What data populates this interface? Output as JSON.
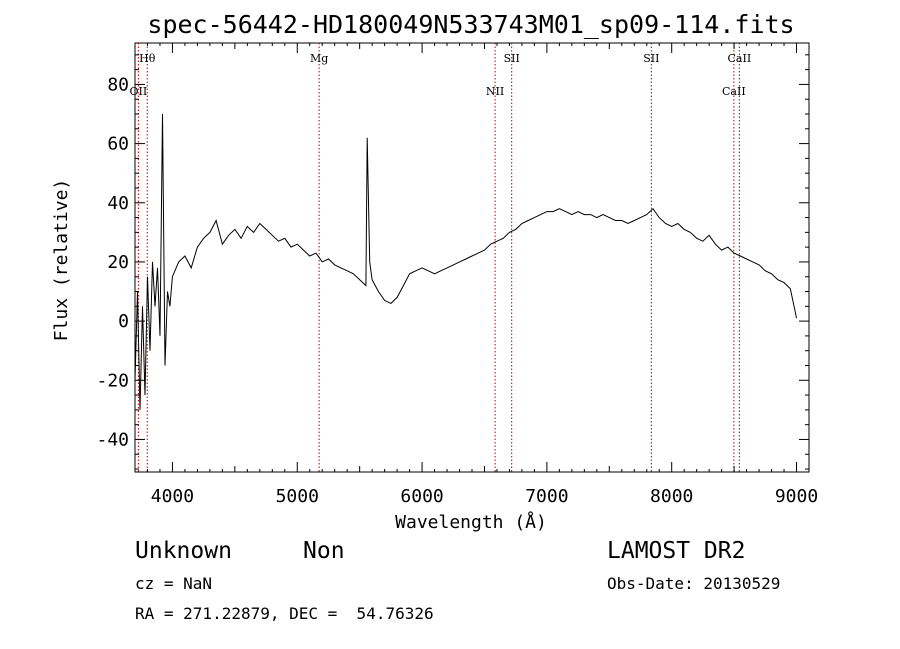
{
  "chart_data": {
    "type": "line",
    "title": "spec-56442-HD180049N533743M01_sp09-114.fits",
    "xlabel": "Wavelength (Å)",
    "ylabel": "Flux (relative)",
    "xlim": [
      3700,
      9100
    ],
    "ylim": [
      -51,
      94
    ],
    "xticks": [
      4000,
      5000,
      6000,
      7000,
      8000,
      9000
    ],
    "yticks": [
      -40,
      -20,
      0,
      20,
      40,
      60,
      80
    ],
    "grid": false,
    "series": [
      {
        "x": [
          3700,
          3720,
          3740,
          3760,
          3780,
          3800,
          3820,
          3840,
          3860,
          3880,
          3900,
          3920,
          3940,
          3960,
          3980,
          4000,
          4050,
          4100,
          4150,
          4200,
          4250,
          4300,
          4350,
          4400,
          4450,
          4500,
          4550,
          4600,
          4650,
          4700,
          4750,
          4800,
          4850,
          4900,
          4950,
          5000,
          5050,
          5100,
          5150,
          5200,
          5250,
          5300,
          5350,
          5400,
          5450,
          5500,
          5550,
          5560,
          5580,
          5600,
          5650,
          5700,
          5750,
          5800,
          5850,
          5900,
          5950,
          6000,
          6050,
          6100,
          6150,
          6200,
          6250,
          6300,
          6350,
          6400,
          6450,
          6500,
          6550,
          6600,
          6650,
          6700,
          6750,
          6800,
          6850,
          6900,
          6950,
          7000,
          7050,
          7100,
          7150,
          7200,
          7250,
          7300,
          7350,
          7400,
          7450,
          7500,
          7550,
          7600,
          7650,
          7700,
          7750,
          7800,
          7850,
          7900,
          7950,
          8000,
          8050,
          8100,
          8150,
          8200,
          8250,
          8300,
          8350,
          8400,
          8450,
          8500,
          8550,
          8600,
          8650,
          8700,
          8750,
          8800,
          8850,
          8900,
          8950,
          8990,
          9000
        ],
        "y": [
          -20,
          10,
          -30,
          5,
          -25,
          15,
          -10,
          20,
          5,
          18,
          -5,
          70,
          -15,
          10,
          5,
          15,
          20,
          22,
          18,
          25,
          28,
          30,
          34,
          26,
          29,
          31,
          28,
          32,
          30,
          33,
          31,
          29,
          27,
          28,
          25,
          26,
          24,
          22,
          23,
          20,
          21,
          19,
          18,
          17,
          16,
          14,
          12,
          62,
          20,
          14,
          10,
          7,
          6,
          8,
          12,
          16,
          17,
          18,
          17,
          16,
          17,
          18,
          19,
          20,
          21,
          22,
          23,
          24,
          26,
          27,
          28,
          30,
          31,
          33,
          34,
          35,
          36,
          37,
          37,
          38,
          37,
          36,
          37,
          36,
          36,
          35,
          36,
          35,
          34,
          34,
          33,
          34,
          35,
          36,
          38,
          35,
          33,
          32,
          33,
          31,
          30,
          28,
          27,
          29,
          26,
          24,
          25,
          23,
          22,
          21,
          20,
          19,
          17,
          16,
          14,
          13,
          11,
          3,
          1
        ]
      }
    ],
    "lines": [
      {
        "name": "Hθ",
        "x": 3798,
        "row": "upper"
      },
      {
        "name": "OII",
        "x": 3727,
        "row": "lower"
      },
      {
        "name": "Mg",
        "x": 5175,
        "row": "upper"
      },
      {
        "name": "NII",
        "x": 6585,
        "row": "lower"
      },
      {
        "name": "SII",
        "x": 6718,
        "row": "upper"
      },
      {
        "name": "SII",
        "x": 7837,
        "row": "upper"
      },
      {
        "name": "CaII",
        "x": 8498,
        "row": "lower"
      },
      {
        "name": "CaII",
        "x": 8542,
        "row": "upper"
      }
    ]
  },
  "info": {
    "class": "Unknown",
    "subclass": "Non",
    "survey": "LAMOST DR2",
    "cz": "cz = NaN",
    "obs_date": "Obs-Date: 20130529",
    "coords": "RA = 271.22879, DEC =  54.76326"
  }
}
